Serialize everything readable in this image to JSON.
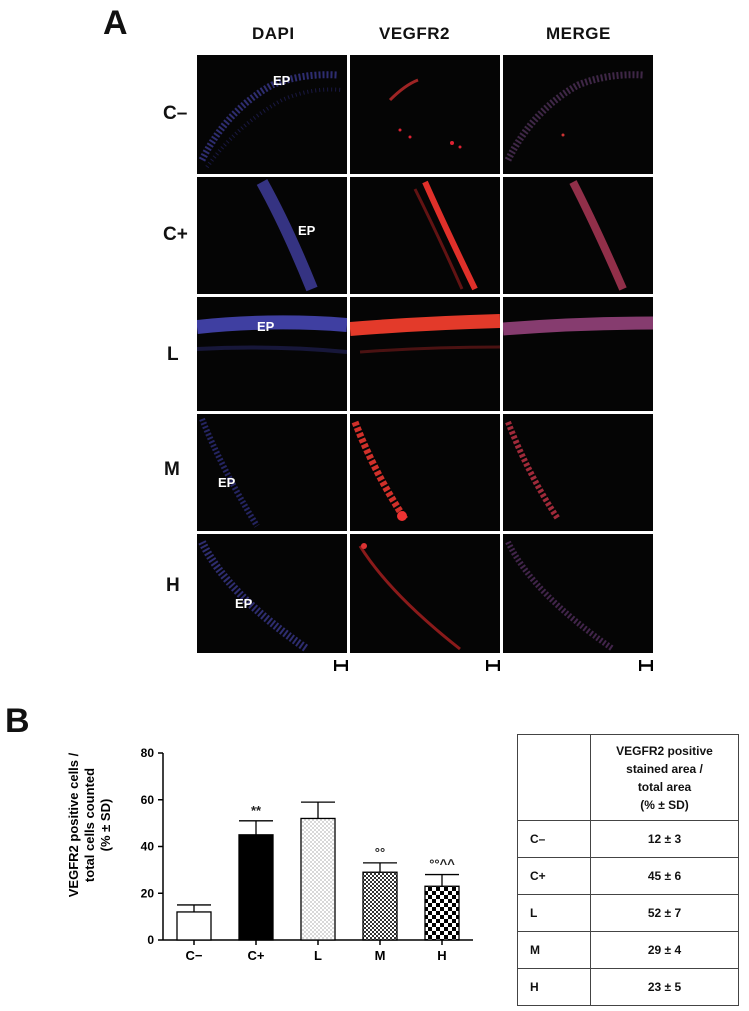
{
  "panel_a": {
    "letter": "A",
    "columns": [
      "DAPI",
      "VEGFR2",
      "MERGE"
    ],
    "rows": [
      "C–",
      "C+",
      "L",
      "M",
      "H"
    ],
    "ep_label": "EP"
  },
  "panel_b": {
    "letter": "B",
    "table": {
      "header_lines": [
        "VEGFR2 positive",
        "stained area /",
        "total area",
        "(% ± SD)"
      ],
      "rows": [
        {
          "group": "C–",
          "value": "12 ± 3"
        },
        {
          "group": "C+",
          "value": "45 ± 6"
        },
        {
          "group": "L",
          "value": "52 ± 7"
        },
        {
          "group": "M",
          "value": "29 ± 4"
        },
        {
          "group": "H",
          "value": "23 ±  5"
        }
      ]
    }
  },
  "chart_data": {
    "type": "bar",
    "categories": [
      "C−",
      "C+",
      "L",
      "M",
      "H"
    ],
    "values": [
      12,
      45,
      52,
      29,
      23
    ],
    "errors": [
      3,
      6,
      7,
      4,
      5
    ],
    "annotations": [
      "",
      "**",
      "",
      "°°",
      "°°^^"
    ],
    "ylabel_lines": [
      "VEGFR2 positive cells /",
      "total cells counted",
      "(% ± SD)"
    ],
    "ylim": [
      0,
      80
    ],
    "yticks": [
      "0",
      "20",
      "40",
      "60",
      "80"
    ],
    "bar_fills": [
      "white",
      "black",
      "light dots",
      "dense check",
      "large check"
    ]
  }
}
